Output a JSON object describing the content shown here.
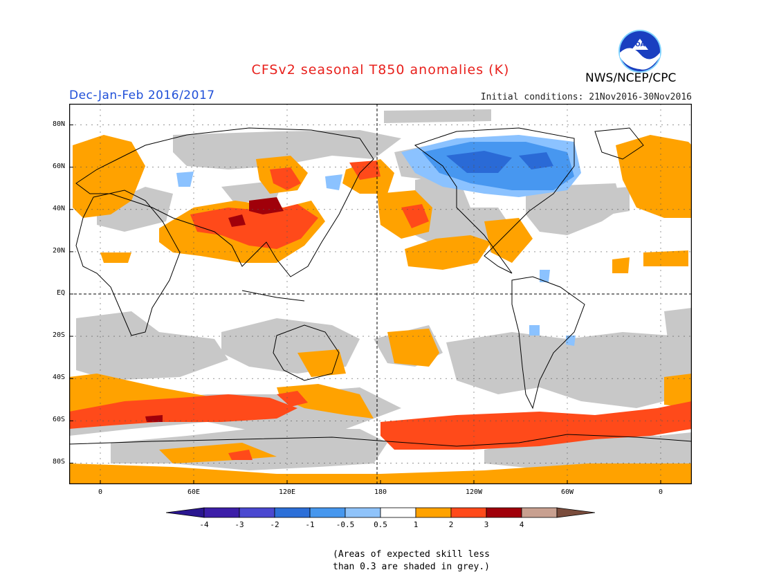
{
  "header": {
    "title": "CFSv2 seasonal T850 anomalies (K)",
    "season": "Dec-Jan-Feb 2016/2017",
    "initial_conditions": "Initial conditions: 21Nov2016-30Nov2016",
    "agency": "NWS/NCEP/CPC",
    "logo_text": "NOAA"
  },
  "map": {
    "lat_labels": [
      "80N",
      "60N",
      "40N",
      "20N",
      "EQ",
      "20S",
      "40S",
      "60S",
      "80S"
    ],
    "lat_values": [
      80,
      60,
      40,
      20,
      0,
      -20,
      -40,
      -60,
      -80
    ],
    "lon_labels": [
      "0",
      "60E",
      "120E",
      "180",
      "120W",
      "60W",
      "0"
    ],
    "lon_values": [
      0,
      60,
      120,
      180,
      240,
      300,
      360
    ],
    "lat_range": [
      -90,
      90
    ],
    "lon_range": [
      -20,
      380
    ],
    "colors": {
      "skill_grey": "#c8c8c8",
      "warm_05_1": "#ffa200",
      "warm_1_2": "#ff4a1a",
      "warm_2_3": "#a0000a",
      "cool_05_1": "#8bc2ff",
      "cool_1_2": "#4797f0",
      "cool_2_3": "#2a6ad6"
    }
  },
  "colorbar": {
    "labels": [
      "-4",
      "-3",
      "-2",
      "-1",
      "-0.5",
      "0.5",
      "1",
      "2",
      "3",
      "4"
    ],
    "colors": [
      "#3c1ea8",
      "#4a48d0",
      "#2c6fd8",
      "#4697ee",
      "#8fc3fa",
      "#ffffff",
      "#ffa200",
      "#ff4a1a",
      "#a0000a",
      "#c8a090"
    ],
    "low_end": "#2a1690",
    "high_end": "#7a4c3c"
  },
  "footnote": {
    "line1": "(Areas of expected skill less",
    "line2": "than 0.3 are shaded in grey.)"
  }
}
